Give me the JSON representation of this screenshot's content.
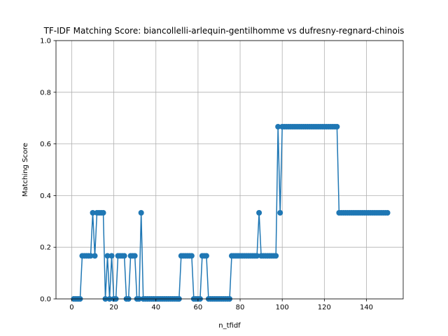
{
  "chart_data": {
    "type": "line",
    "title": "TF-IDF Matching Score: biancollelli-arlequin-gentilhomme vs dufresny-regnard-chinois",
    "xlabel": "n_tfidf",
    "ylabel": "Matching Score",
    "xlim": [
      -7.45,
      157.45
    ],
    "ylim": [
      0,
      1
    ],
    "xticks": [
      0,
      20,
      40,
      60,
      80,
      100,
      120,
      140
    ],
    "yticks": [
      0.0,
      0.2,
      0.4,
      0.6,
      0.8,
      1.0
    ],
    "xtick_labels": [
      "0",
      "20",
      "40",
      "60",
      "80",
      "100",
      "120",
      "140"
    ],
    "ytick_labels": [
      "0.0",
      "0.2",
      "0.4",
      "0.6",
      "0.8",
      "1.0"
    ],
    "grid": true,
    "marker": "circle",
    "color": "#1f77b4",
    "series": [
      {
        "x": [
          1,
          2,
          3,
          4,
          5,
          6,
          7,
          8,
          9,
          10,
          11,
          12,
          13,
          14,
          15,
          16,
          17,
          18,
          19,
          20,
          21,
          22,
          23,
          24,
          25,
          26,
          27,
          28,
          29,
          30,
          31,
          32,
          33,
          34,
          35,
          36,
          37,
          38,
          39,
          40,
          41,
          42,
          43,
          44,
          45,
          46,
          47,
          48,
          49,
          50,
          51,
          52,
          53,
          54,
          55,
          56,
          57,
          58,
          59,
          60,
          61,
          62,
          63,
          64,
          65,
          66,
          67,
          68,
          69,
          70,
          71,
          72,
          73,
          74,
          75,
          76,
          77,
          78,
          79,
          80,
          81,
          82,
          83,
          84,
          85,
          86,
          87,
          88,
          89,
          90,
          91,
          92,
          93,
          94,
          95,
          96,
          97,
          98,
          99,
          100,
          101,
          102,
          103,
          104,
          105,
          106,
          107,
          108,
          109,
          110,
          111,
          112,
          113,
          114,
          115,
          116,
          117,
          118,
          119,
          120,
          121,
          122,
          123,
          124,
          125,
          126,
          127,
          128,
          129,
          130,
          131,
          132,
          133,
          134,
          135,
          136,
          137,
          138,
          139,
          140,
          141,
          142,
          143,
          144,
          145,
          146,
          147,
          148,
          149,
          150
        ],
        "values": [
          0,
          0,
          0,
          0,
          0.1667,
          0.1667,
          0.1667,
          0.1667,
          0.1667,
          0.3333,
          0.1667,
          0.3333,
          0.3333,
          0.3333,
          0.3333,
          0,
          0.1667,
          0,
          0.1667,
          0,
          0,
          0.1667,
          0.1667,
          0.1667,
          0.1667,
          0,
          0,
          0.1667,
          0.1667,
          0.1667,
          0,
          0,
          0.3333,
          0,
          0,
          0,
          0,
          0,
          0,
          0,
          0,
          0,
          0,
          0,
          0,
          0,
          0,
          0,
          0,
          0,
          0,
          0.1667,
          0.1667,
          0.1667,
          0.1667,
          0.1667,
          0.1667,
          0,
          0,
          0,
          0,
          0.1667,
          0.1667,
          0.1667,
          0,
          0,
          0,
          0,
          0,
          0,
          0,
          0,
          0,
          0,
          0,
          0.1667,
          0.1667,
          0.1667,
          0.1667,
          0.1667,
          0.1667,
          0.1667,
          0.1667,
          0.1667,
          0.1667,
          0.1667,
          0.1667,
          0.1667,
          0.3333,
          0.1667,
          0.1667,
          0.1667,
          0.1667,
          0.1667,
          0.1667,
          0.1667,
          0.1667,
          0.6667,
          0.3333,
          0.6667,
          0.6667,
          0.6667,
          0.6667,
          0.6667,
          0.6667,
          0.6667,
          0.6667,
          0.6667,
          0.6667,
          0.6667,
          0.6667,
          0.6667,
          0.6667,
          0.6667,
          0.6667,
          0.6667,
          0.6667,
          0.6667,
          0.6667,
          0.6667,
          0.6667,
          0.6667,
          0.6667,
          0.6667,
          0.6667,
          0.6667,
          0.3333,
          0.3333,
          0.3333,
          0.3333,
          0.3333,
          0.3333,
          0.3333,
          0.3333,
          0.3333,
          0.3333,
          0.3333,
          0.3333,
          0.3333,
          0.3333,
          0.3333,
          0.3333,
          0.3333,
          0.3333,
          0.3333,
          0.3333,
          0.3333,
          0.3333,
          0.3333,
          0.3333
        ]
      }
    ]
  }
}
